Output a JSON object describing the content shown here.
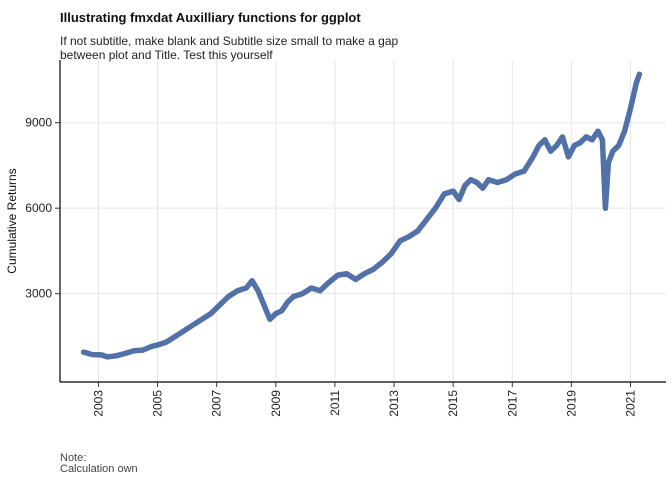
{
  "chart_data": {
    "type": "line",
    "title": "Illustrating fmxdat Auxilliary functions for ggplot",
    "subtitle_lines": [
      "If not subtitle, make blank and Subtitle size small to make a gap",
      "between plot and Title. Test this yourself"
    ],
    "xlabel": "",
    "ylabel": "Cumulative Returns",
    "caption_lines": [
      "Note:",
      "Calculation own"
    ],
    "xlim": [
      2001.7,
      2022.2
    ],
    "ylim": [
      -100,
      11200
    ],
    "x_ticks": [
      2003,
      2005,
      2007,
      2009,
      2011,
      2013,
      2015,
      2017,
      2019,
      2021
    ],
    "y_ticks": [
      3000,
      6000,
      9000
    ],
    "grid": true,
    "legend": "none",
    "line_color": "#3f62a0",
    "series": [
      {
        "x": [
          2002.5,
          2002.8,
          2003.1,
          2003.3,
          2003.6,
          2003.9,
          2004.2,
          2004.5,
          2004.8,
          2005.0,
          2005.3,
          2005.6,
          2005.9,
          2006.2,
          2006.5,
          2006.8,
          2007.1,
          2007.4,
          2007.7,
          2008.0,
          2008.2,
          2008.4,
          2008.6,
          2008.8,
          2009.0,
          2009.2,
          2009.4,
          2009.6,
          2009.9,
          2010.2,
          2010.5,
          2010.8,
          2011.1,
          2011.4,
          2011.7,
          2012.0,
          2012.3,
          2012.6,
          2012.9,
          2013.2,
          2013.5,
          2013.8,
          2014.1,
          2014.4,
          2014.7,
          2015.0,
          2015.2,
          2015.4,
          2015.6,
          2015.8,
          2016.0,
          2016.2,
          2016.5,
          2016.8,
          2017.1,
          2017.4,
          2017.7,
          2017.9,
          2018.1,
          2018.3,
          2018.5,
          2018.7,
          2018.9,
          2019.1,
          2019.3,
          2019.5,
          2019.7,
          2019.9,
          2020.05,
          2020.15,
          2020.25,
          2020.4,
          2020.6,
          2020.8,
          2021.0,
          2021.2,
          2021.3
        ],
        "y": [
          950,
          860,
          850,
          780,
          820,
          900,
          1000,
          1020,
          1150,
          1200,
          1300,
          1500,
          1700,
          1900,
          2100,
          2300,
          2600,
          2900,
          3100,
          3200,
          3450,
          3100,
          2600,
          2100,
          2300,
          2400,
          2700,
          2900,
          3000,
          3200,
          3100,
          3400,
          3650,
          3700,
          3500,
          3700,
          3850,
          4100,
          4400,
          4850,
          5000,
          5200,
          5600,
          6000,
          6500,
          6600,
          6300,
          6800,
          7000,
          6900,
          6700,
          7000,
          6900,
          7000,
          7200,
          7300,
          7800,
          8200,
          8400,
          8000,
          8200,
          8500,
          7800,
          8200,
          8300,
          8500,
          8400,
          8700,
          8400,
          6000,
          7600,
          8000,
          8200,
          8700,
          9500,
          10400,
          10700
        ]
      }
    ]
  }
}
